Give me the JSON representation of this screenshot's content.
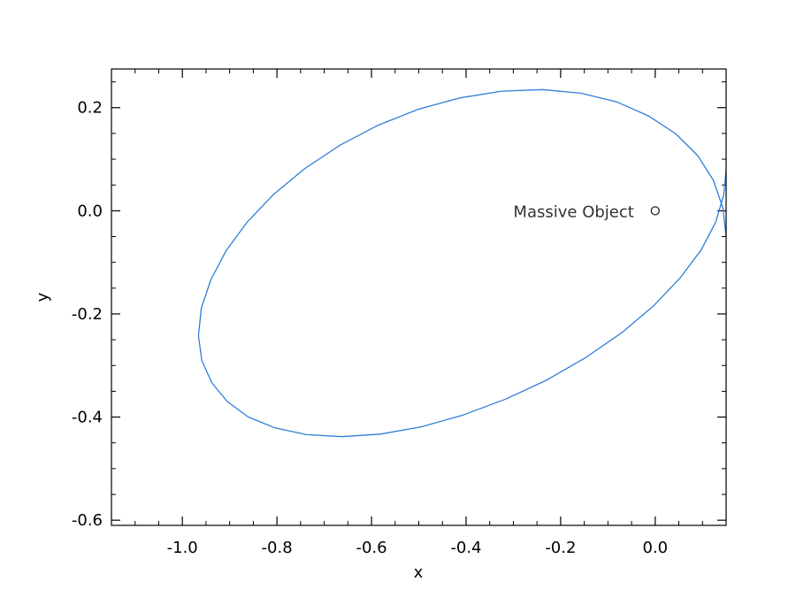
{
  "chart_data": {
    "type": "line",
    "title": "",
    "xlabel": "x",
    "ylabel": "y",
    "xlim": [
      -1.15,
      0.15
    ],
    "ylim": [
      -0.61,
      0.275
    ],
    "grid": false,
    "x_ticks": [
      -1.0,
      -0.8,
      -0.6,
      -0.4,
      -0.2,
      0.0
    ],
    "x_tick_labels": [
      "-1.0",
      "-0.8",
      "-0.6",
      "-0.4",
      "-0.2",
      "0.0"
    ],
    "y_ticks": [
      0.2,
      0.0,
      -0.2,
      -0.4,
      -0.6
    ],
    "y_tick_labels": [
      "0.2",
      "0.0",
      "-0.2",
      "-0.4",
      "-0.6"
    ],
    "x_minor_step": 0.05,
    "y_minor_step": 0.05,
    "series": [
      {
        "color": "#2f7ed8",
        "x": [
          0.15,
          0.143,
          0.123,
          0.09,
          0.044,
          -0.014,
          -0.081,
          -0.157,
          -0.239,
          -0.325,
          -0.413,
          -0.501,
          -0.586,
          -0.667,
          -0.741,
          -0.807,
          -0.863,
          -0.908,
          -0.94,
          -0.96,
          -0.966,
          -0.959,
          -0.938,
          -0.905,
          -0.86,
          -0.804,
          -0.738,
          -0.663,
          -0.581,
          -0.495,
          -0.406,
          -0.316,
          -0.229,
          -0.146,
          -0.07,
          -0.003,
          0.053,
          0.097,
          0.128,
          0.145,
          0.15
        ],
        "y": [
          -0.05,
          0.006,
          0.059,
          0.107,
          0.149,
          0.184,
          0.211,
          0.228,
          0.235,
          0.232,
          0.219,
          0.197,
          0.166,
          0.127,
          0.082,
          0.032,
          -0.022,
          -0.078,
          -0.134,
          -0.189,
          -0.242,
          -0.29,
          -0.333,
          -0.37,
          -0.4,
          -0.421,
          -0.434,
          -0.438,
          -0.433,
          -0.419,
          -0.396,
          -0.365,
          -0.328,
          -0.284,
          -0.236,
          -0.184,
          -0.13,
          -0.076,
          -0.022,
          0.031,
          0.08
        ]
      }
    ],
    "annotations": [
      {
        "text": "Massive Object",
        "x": -0.3,
        "y": 0.0
      }
    ],
    "marker": {
      "x": 0.0,
      "y": 0.0,
      "color": "#333333"
    }
  }
}
